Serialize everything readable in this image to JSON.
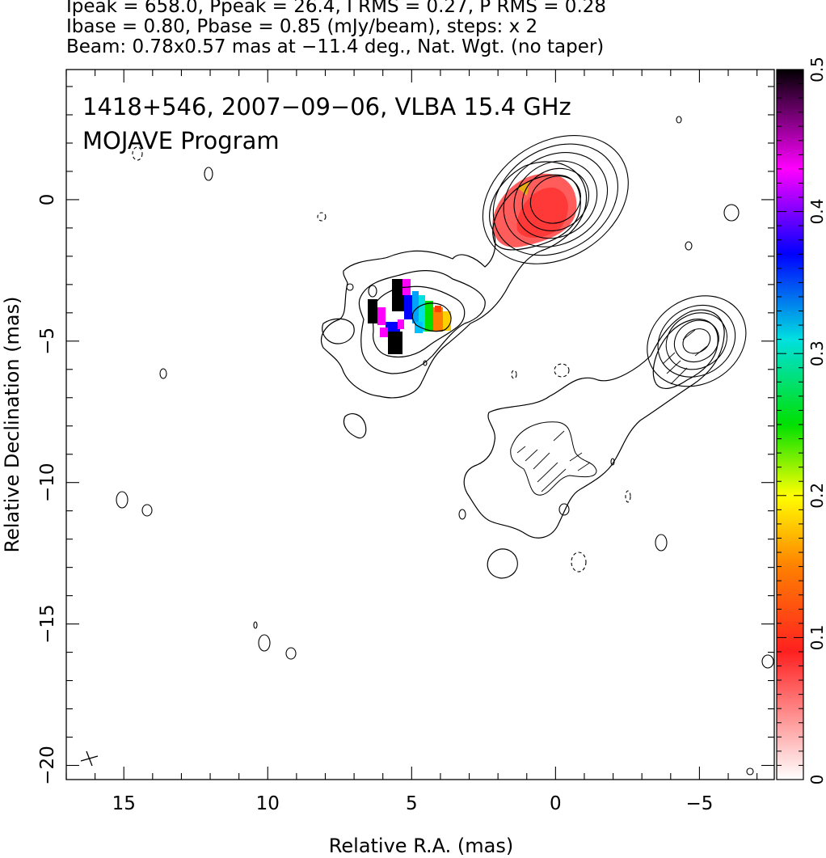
{
  "header": {
    "line1": "Ipeak = 658.0, Ppeak = 26.4, I RMS = 0.27, P RMS = 0.28",
    "line2": "Ibase = 0.80, Pbase = 0.85 (mJy/beam), steps: x 2",
    "line3": "Beam: 0.78x0.57 mas at −11.4 deg., Nat. Wgt. (no taper)"
  },
  "panel": {
    "label1": "1418+546, 2007−09−06, VLBA 15.4 GHz",
    "label2": "MOJAVE Program"
  },
  "chart_data": {
    "type": "heatmap",
    "title": "1418+546, 2007−09−06, VLBA 15.4 GHz",
    "subtitle": "MOJAVE Program",
    "xlabel": "Relative R.A. (mas)",
    "ylabel": "Relative Declination (mas)",
    "xlim": [
      17.0,
      -7.6
    ],
    "ylim": [
      -20.5,
      4.6
    ],
    "xticks": [
      15,
      10,
      5,
      0,
      -5
    ],
    "xtick_labels": [
      "15",
      "10",
      "5",
      "0",
      "−5"
    ],
    "yticks": [
      0,
      -5,
      -10,
      -15,
      -20
    ],
    "ytick_labels": [
      "0",
      "−5",
      "−10",
      "−15",
      "−20"
    ],
    "colorbar": {
      "range": [
        0,
        0.5
      ],
      "ticks": [
        0,
        0.1,
        0.2,
        0.3,
        0.4,
        0.5
      ],
      "tick_labels": [
        "0",
        "0.1",
        "0.2",
        "0.3",
        "0.4",
        "0.5"
      ],
      "colors": [
        "#ffffff",
        "#ff3030",
        "#ff8000",
        "#ffff00",
        "#00e000",
        "#00e0e0",
        "#0000ff",
        "#ff00ff",
        "#000000"
      ]
    },
    "contours": [
      {
        "kind": "core",
        "x": 0,
        "y": 0,
        "rx": [
          0.9,
          1.2,
          1.5,
          1.9,
          2.3,
          2.7
        ],
        "ry": [
          0.8,
          1.05,
          1.3,
          1.55,
          1.8,
          2.05
        ]
      },
      {
        "kind": "knot",
        "x": -4.9,
        "y": -5.0,
        "rx": [
          0.5,
          0.8,
          1.1,
          1.4,
          1.8
        ],
        "ry": [
          0.4,
          0.7,
          0.95,
          1.2,
          1.5
        ]
      }
    ],
    "polarized_region": {
      "x": [
        3.5,
        6.5
      ],
      "y": [
        -2.7,
        -5.3
      ],
      "value_range": [
        0.1,
        0.5
      ]
    },
    "beam": {
      "major_mas": 0.78,
      "minor_mas": 0.57,
      "pa_deg": -11.4
    }
  }
}
